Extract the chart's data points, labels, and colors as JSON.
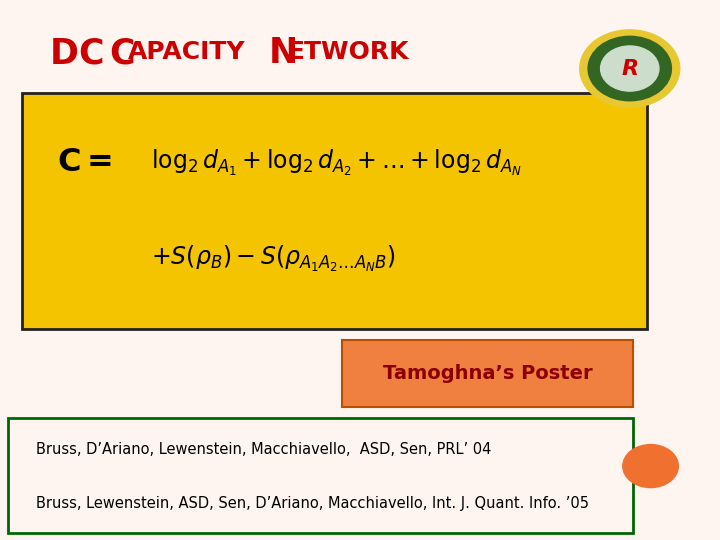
{
  "title_color": "#cc0000",
  "slide_bg": "#fff5f0",
  "formula_box_color": "#f5c400",
  "formula_box_edge": "#222222",
  "poster_label": "Tamoghna’s Poster",
  "poster_box_color": "#f08040",
  "poster_text_color": "#8b0000",
  "ref_line1": "Bruss, D’Ariano, Lewenstein, Macchiavello,  ASD, Sen, PRL’ 04",
  "ref_line2": "Bruss, Lewenstein, ASD, Sen, D’Ariano, Macchiavello, Int. J. Quant. Info. ’05",
  "ref_box_color": "#006600",
  "ref_text_color": "#000000",
  "orange_circle_color": "#f07030",
  "formula1": "$\\log_2 d_{A_1} + \\log_2 d_{A_2} + \\ldots + \\log_2 d_{A_N}$",
  "formula2": "$+S(\\rho_B) - S(\\rho_{A_1 A_2 \\ldots A_N B})$"
}
